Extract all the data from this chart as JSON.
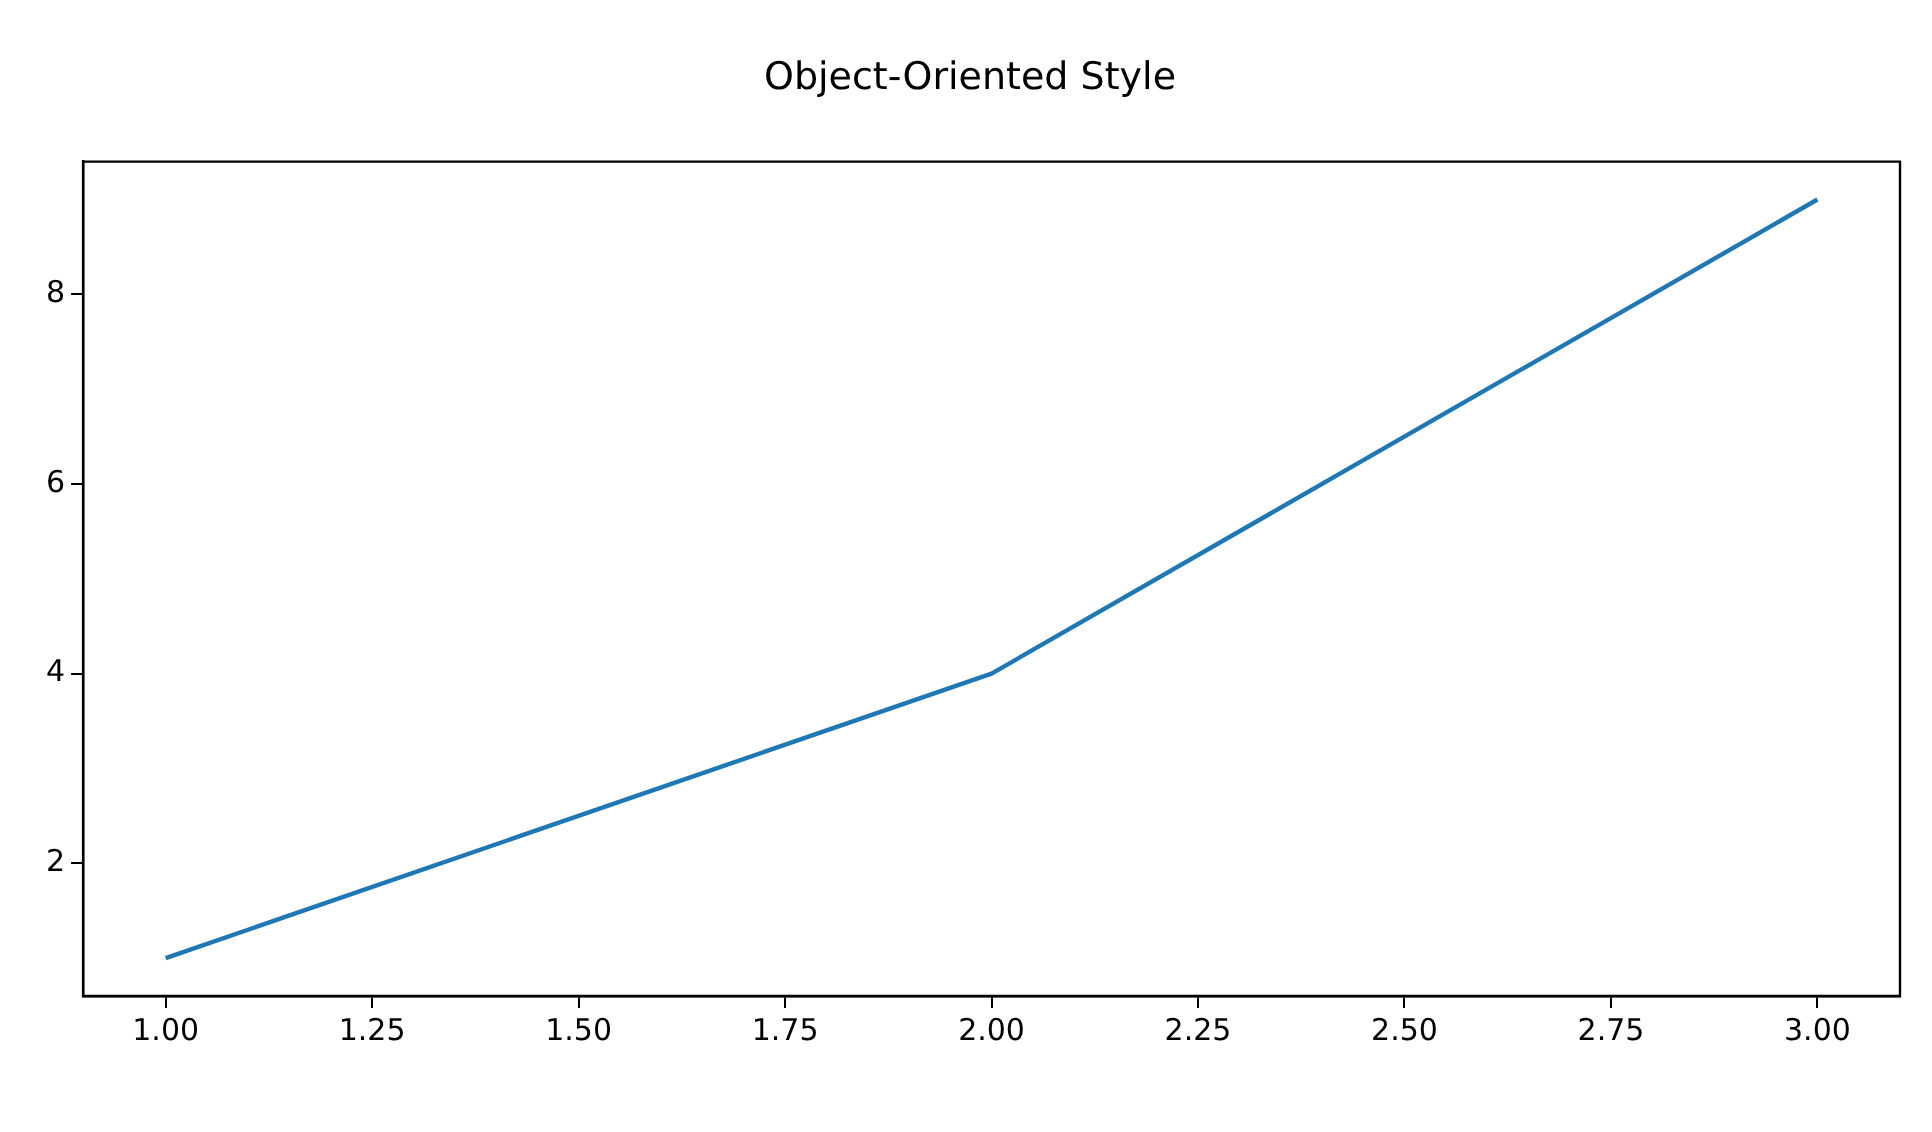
{
  "chart_data": {
    "type": "line",
    "title": "Object-Oriented Style",
    "x": [
      1,
      2,
      3
    ],
    "series": [
      {
        "color": "#1f77b4",
        "values": [
          1,
          4,
          9
        ]
      }
    ],
    "xlim": [
      0.9,
      3.1
    ],
    "xticks": [
      {
        "value": 1,
        "label": "1.00"
      },
      {
        "value": 1.25,
        "label": "1.25"
      },
      {
        "value": 1.5,
        "label": "1.50"
      },
      {
        "value": 1.75,
        "label": "1.75"
      },
      {
        "value": 2,
        "label": "2.00"
      },
      {
        "value": 2.25,
        "label": "2.25"
      },
      {
        "value": 2.5,
        "label": "2.50"
      },
      {
        "value": 2.75,
        "label": "2.75"
      },
      {
        "value": 3,
        "label": "3.00"
      }
    ],
    "ylim": [
      0.6,
      9.4
    ],
    "yticks": [
      2,
      4,
      6,
      8
    ],
    "grid": false,
    "legend": false,
    "marker": "none",
    "line_style": "solid"
  }
}
